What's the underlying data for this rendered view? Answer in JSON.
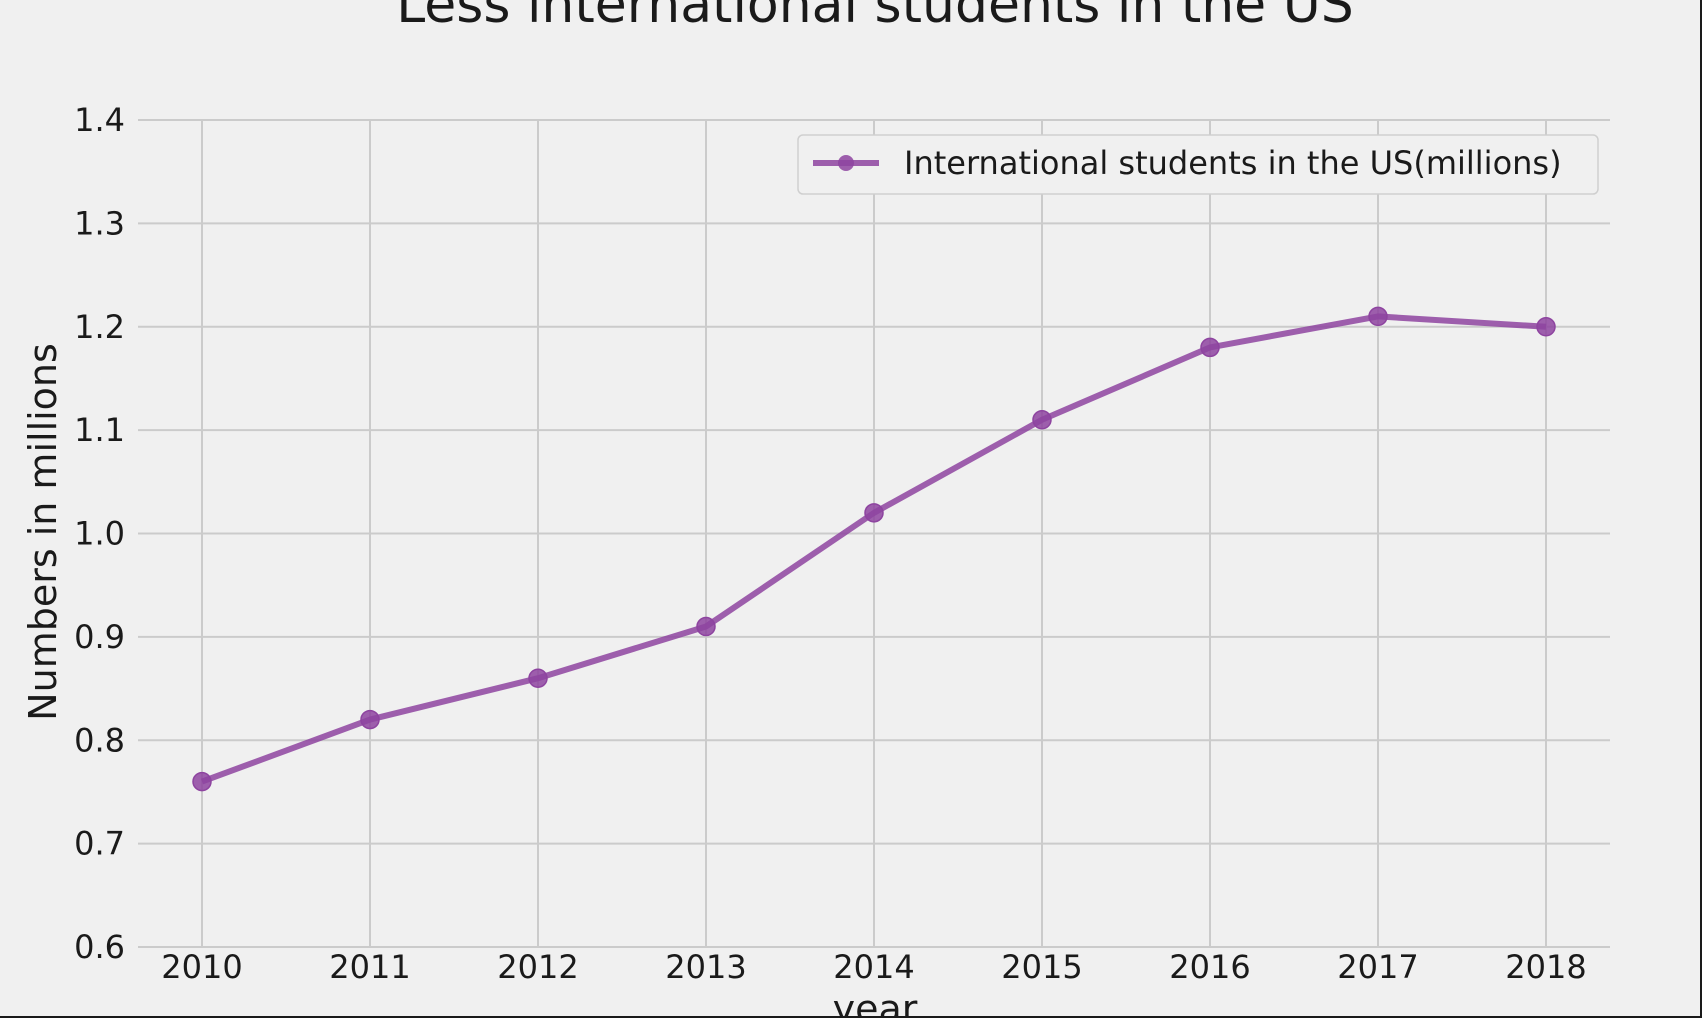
{
  "chart_data": {
    "type": "line",
    "title": "Less international students in the US",
    "xlabel": "year",
    "ylabel": "Numbers in millions",
    "x": [
      2010,
      2011,
      2012,
      2013,
      2014,
      2015,
      2016,
      2017,
      2018
    ],
    "x_tick_labels": [
      "2010",
      "2011",
      "2012",
      "2013",
      "2014",
      "2015",
      "2016",
      "2017",
      "2018"
    ],
    "series": [
      {
        "name": "International students in the US(millions)",
        "values": [
          0.76,
          0.82,
          0.86,
          0.91,
          1.02,
          1.11,
          1.18,
          1.21,
          1.2
        ],
        "color": "#8e44a0"
      }
    ],
    "ylim": [
      0.6,
      1.4
    ],
    "y_ticks": [
      0.6,
      0.7,
      0.8,
      0.9,
      1.0,
      1.1,
      1.2,
      1.3,
      1.4
    ],
    "y_tick_labels": [
      "0.6",
      "0.7",
      "0.8",
      "0.9",
      "1.0",
      "1.1",
      "1.2",
      "1.3",
      "1.4"
    ],
    "grid": true,
    "legend_position": "top-right",
    "background_color": "#f0f0f0",
    "grid_color": "#cbcbcb"
  }
}
